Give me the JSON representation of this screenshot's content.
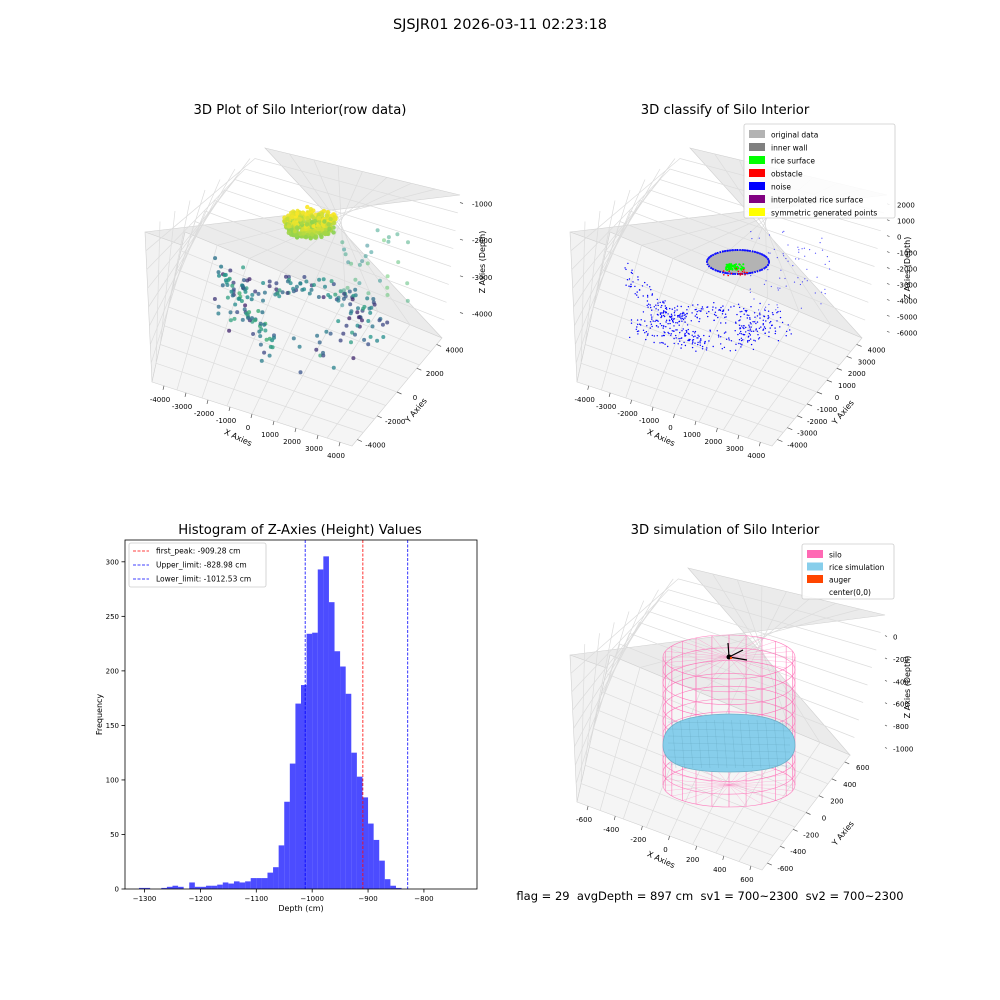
{
  "figure": {
    "title": "SJSJR01 2026-03-11 02:23:18",
    "status_line": "flag = 29  avgDepth = 897 cm  sv1 = 700~2300  sv2 = 700~2300"
  },
  "chart_data": [
    {
      "type": "scatter",
      "title": "3D Plot of Silo Interior(row data)",
      "xlabel": "X Axies",
      "ylabel": "Y Axies",
      "zlabel": "Z Axies (Depth)",
      "x_ticks": [
        "-4000",
        "-3000",
        "-2000",
        "-1000",
        "0",
        "1000",
        "2000",
        "3000",
        "4000"
      ],
      "y_ticks": [
        "-4000",
        "-2000",
        "0",
        "2000",
        "4000"
      ],
      "z_ticks": [
        "-1000",
        "-2000",
        "-3000",
        "-4000"
      ],
      "xlim": [
        -4500,
        4500
      ],
      "ylim": [
        -4500,
        4500
      ],
      "zlim": [
        -4500,
        -500
      ],
      "colormap": "viridis",
      "description_note_hidden": false
    },
    {
      "type": "scatter",
      "title": "3D classify of Silo Interior",
      "xlabel": "X Axies",
      "ylabel": "Y Axies",
      "zlabel": "Z Axies (Depth)",
      "x_ticks": [
        "-4000",
        "-3000",
        "-2000",
        "-1000",
        "0",
        "1000",
        "2000",
        "3000",
        "4000"
      ],
      "y_ticks": [
        "-4000",
        "-3000",
        "-2000",
        "-1000",
        "0",
        "1000",
        "2000",
        "3000",
        "4000"
      ],
      "z_ticks": [
        "2000",
        "1000",
        "0",
        "-1000",
        "-2000",
        "-3000",
        "-4000",
        "-5000",
        "-6000"
      ],
      "xlim": [
        -4500,
        4000
      ],
      "ylim": [
        -4500,
        4500
      ],
      "zlim": [
        -6500,
        2500
      ],
      "legend": [
        {
          "label": "original data",
          "color": "#b3b3b3"
        },
        {
          "label": "inner wall",
          "color": "#808080"
        },
        {
          "label": "rice surface",
          "color": "#00ff00"
        },
        {
          "label": "obstacle",
          "color": "#ff0000"
        },
        {
          "label": "noise",
          "color": "#0000ff"
        },
        {
          "label": "interpolated rice surface",
          "color": "#800080"
        },
        {
          "label": "symmetric generated points",
          "color": "#ffff00"
        }
      ],
      "legend_position": "top-right"
    },
    {
      "type": "bar",
      "title": "Histogram of Z-Axies (Height) Values",
      "xlabel": "Depth (cm)",
      "ylabel": "Frequency",
      "xlim": [
        -1335,
        -705
      ],
      "ylim": [
        0,
        320
      ],
      "x_ticks": [
        -1300,
        -1200,
        -1100,
        -1000,
        -900,
        -800
      ],
      "y_ticks": [
        0,
        50,
        100,
        150,
        200,
        250,
        300
      ],
      "bar_color": "#0000ff",
      "bin_start": -1310,
      "bin_width": 10,
      "values": [
        1,
        1,
        0,
        0,
        1,
        2,
        3,
        2,
        0,
        6,
        2,
        2,
        3,
        3,
        4,
        6,
        5,
        7,
        6,
        7,
        10,
        10,
        10,
        15,
        20,
        40,
        80,
        115,
        170,
        187,
        234,
        235,
        293,
        305,
        263,
        218,
        204,
        179,
        125,
        103,
        84,
        60,
        45,
        26,
        9,
        3,
        1
      ],
      "vlines": [
        {
          "label": "first_peak: -909.28 cm",
          "x": -909.28,
          "color": "#ff0000"
        },
        {
          "label": "Upper_limit: -828.98 cm",
          "x": -828.98,
          "color": "#0000ff"
        },
        {
          "label": "Lower_limit: -1012.53 cm",
          "x": -1012.53,
          "color": "#0000ff"
        }
      ],
      "legend_position": "top-left"
    },
    {
      "type": "surface",
      "title": "3D simulation of Silo Interior",
      "xlabel": "X Axies",
      "ylabel": "Y Axies",
      "zlabel": "Z Axies (Depth)",
      "x_ticks": [
        "-600",
        "-400",
        "-200",
        "0",
        "200",
        "400",
        "600"
      ],
      "y_ticks": [
        "-600",
        "-400",
        "-200",
        "0",
        "200",
        "400",
        "600"
      ],
      "z_ticks": [
        "0",
        "-200",
        "-400",
        "-600",
        "-800",
        "-1000"
      ],
      "legend": [
        {
          "label": "silo",
          "color": "#ff69b4"
        },
        {
          "label": "rice simulation",
          "color": "#87ceeb"
        },
        {
          "label": "auger",
          "color": "#ff4500"
        },
        {
          "label": "center(0,0)",
          "color": "none"
        }
      ],
      "legend_position": "top-right"
    }
  ]
}
